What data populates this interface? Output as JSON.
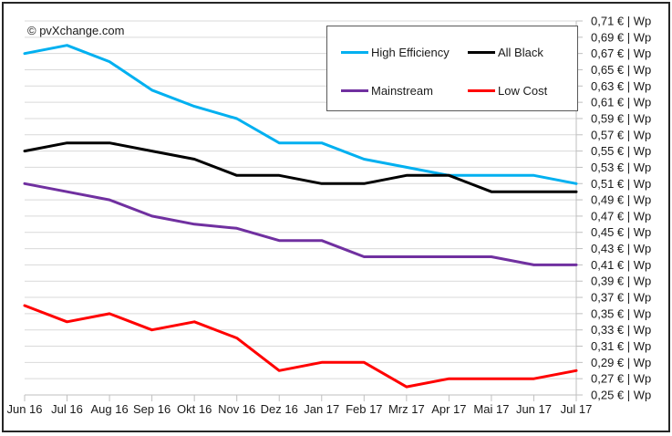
{
  "watermark": "© pvXchange.com",
  "legend": {
    "items": [
      {
        "label": "High Efficiency",
        "color": "#00B0F0"
      },
      {
        "label": "All Black",
        "color": "#000000"
      },
      {
        "label": "Mainstream",
        "color": "#7030A0"
      },
      {
        "label": "Low Cost",
        "color": "#FF0000"
      }
    ]
  },
  "chart_data": {
    "type": "line",
    "title": "",
    "xlabel": "",
    "ylabel": "€ | Wp",
    "grid": true,
    "legend_position": "top-right-inside",
    "categories": [
      "Jun 16",
      "Jul 16",
      "Aug 16",
      "Sep 16",
      "Okt 16",
      "Nov 16",
      "Dez 16",
      "Jan 17",
      "Feb 17",
      "Mrz 17",
      "Apr 17",
      "Mai 17",
      "Jun 17",
      "Jul 17"
    ],
    "y_axis": {
      "min": 0.25,
      "max": 0.71,
      "step": 0.02,
      "unit_suffix": " € | Wp",
      "tick_labels_top_to_bottom": [
        "0,71 € | Wp",
        "0,69 € | Wp",
        "0,67 € | Wp",
        "0,65 € | Wp",
        "0,63 € | Wp",
        "0,61 € | Wp",
        "0,59 € | Wp",
        "0,57 € | Wp",
        "0,55 € | Wp",
        "0,53 € | Wp",
        "0,51 € | Wp",
        "0,49 € | Wp",
        "0,47 € | Wp",
        "0,45 € | Wp",
        "0,43 € | Wp",
        "0,41 € | Wp",
        "0,39 € | Wp",
        "0,37 € | Wp",
        "0,35 € | Wp",
        "0,33 € | Wp",
        "0,31 € | Wp",
        "0,29 € | Wp",
        "0,27 € | Wp",
        "0,25 € | Wp"
      ]
    },
    "series": [
      {
        "name": "High Efficiency",
        "color": "#00B0F0",
        "values": [
          0.67,
          0.68,
          0.66,
          0.625,
          0.605,
          0.59,
          0.56,
          0.56,
          0.54,
          0.53,
          0.52,
          0.52,
          0.52,
          0.51
        ]
      },
      {
        "name": "All Black",
        "color": "#000000",
        "values": [
          0.55,
          0.56,
          0.56,
          0.55,
          0.54,
          0.52,
          0.52,
          0.51,
          0.51,
          0.52,
          0.52,
          0.5,
          0.5,
          0.5
        ]
      },
      {
        "name": "Mainstream",
        "color": "#7030A0",
        "values": [
          0.51,
          0.5,
          0.49,
          0.47,
          0.46,
          0.455,
          0.44,
          0.44,
          0.42,
          0.42,
          0.42,
          0.42,
          0.41,
          0.41
        ]
      },
      {
        "name": "Low Cost",
        "color": "#FF0000",
        "values": [
          0.36,
          0.34,
          0.35,
          0.33,
          0.34,
          0.32,
          0.28,
          0.29,
          0.29,
          0.26,
          0.27,
          0.27,
          0.27,
          0.28
        ]
      }
    ],
    "style": {
      "gridline_color": "#D9D9D9",
      "axis_color": "#BFBFBF",
      "line_width": 3,
      "background": "#FFFFFF",
      "frame_border": "#262626"
    }
  }
}
